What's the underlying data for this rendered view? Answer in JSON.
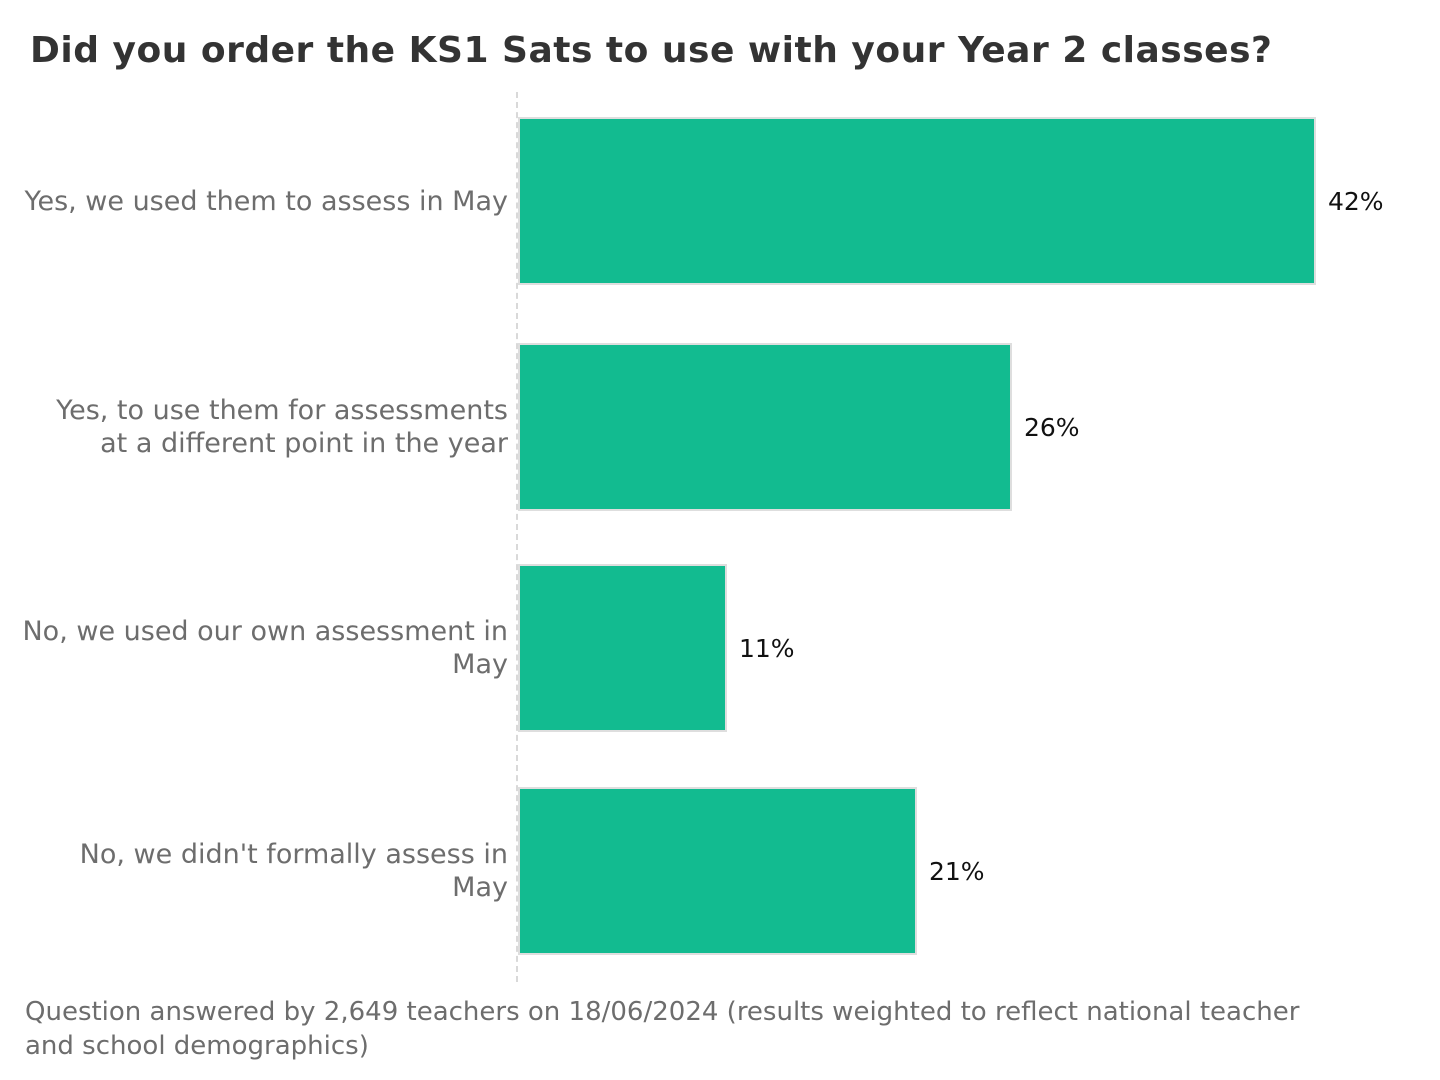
{
  "title": "Did you order the KS1 Sats to use with your Year 2 classes?",
  "footnote": "Question answered by 2,649 teachers on 18/06/2024 (results weighted to reflect national teacher and school demographics)",
  "colors": {
    "bar_fill": "#12bb90",
    "bar_border": "#dedede",
    "title_text": "#333333",
    "category_text": "#6d6d6d",
    "value_text": "#111111",
    "axis_line": "#d9d9d9",
    "background": "#ffffff"
  },
  "chart_data": {
    "type": "bar",
    "orientation": "horizontal",
    "title": "Did you order the KS1 Sats to use with your Year 2 classes?",
    "xlabel": "",
    "ylabel": "",
    "xlim": [
      0,
      45
    ],
    "grid": false,
    "legend": false,
    "categories": [
      "Yes, we used them to assess in May",
      "Yes, to use them for assessments at a different point in the year",
      "No, we used our own assessment in May",
      "No, we didn't formally assess in May"
    ],
    "categories_display": [
      "Yes, we used them to assess in May",
      "Yes, to use them for assessments\nat a different point in the year",
      "No, we used our own assessment in\nMay",
      "No, we didn't formally assess in\nMay"
    ],
    "values": [
      42,
      26,
      11,
      21
    ],
    "value_labels": [
      "42%",
      "26%",
      "11%",
      "21%"
    ]
  }
}
